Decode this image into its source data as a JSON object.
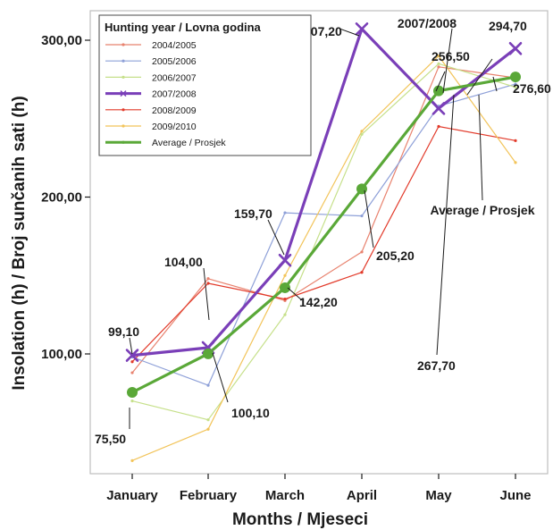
{
  "chart_data": {
    "type": "line",
    "xlabel": "Months / Mjeseci",
    "ylabel": "Insolation (h) / Broj sunčanih sati (h)",
    "categories": [
      "January",
      "February",
      "March",
      "April",
      "May",
      "June"
    ],
    "ylim": [
      20,
      310
    ],
    "yticks": [
      "100,00",
      "200,00",
      "300,00"
    ],
    "ytick_values": [
      100,
      200,
      300
    ],
    "grid": false,
    "legend": {
      "title": "Hunting year / Lovna godina",
      "position": "top-left"
    },
    "series": [
      {
        "name": "2004/2005",
        "color": "#e8826e",
        "width": 1.2,
        "values": [
          88,
          148,
          134,
          165,
          283,
          276
        ]
      },
      {
        "name": "2005/2006",
        "color": "#8ea0d8",
        "width": 1.2,
        "values": [
          98,
          80,
          190,
          188,
          258,
          272
        ]
      },
      {
        "name": "2006/2007",
        "color": "#c6e08a",
        "width": 1.2,
        "values": [
          70,
          58,
          125,
          240,
          285,
          270
        ]
      },
      {
        "name": "2007/2008",
        "color": "#7a3fb8",
        "width": 3.2,
        "marker": "x",
        "values": [
          99.1,
          104.0,
          159.7,
          307.2,
          256.5,
          294.7
        ]
      },
      {
        "name": "2008/2009",
        "color": "#e23a2a",
        "width": 1.2,
        "values": [
          95,
          145,
          135,
          152,
          245,
          236
        ]
      },
      {
        "name": "2009/2010",
        "color": "#f2c45a",
        "width": 1.2,
        "values": [
          32,
          52,
          150,
          242,
          290,
          222
        ]
      },
      {
        "name": "Average / Prosjek",
        "color": "#5aa838",
        "width": 3.2,
        "marker": "dot",
        "values": [
          75.5,
          100.1,
          142.2,
          205.2,
          267.7,
          276.6
        ]
      }
    ],
    "data_labels": [
      "99,10",
      "104,00",
      "159,70",
      "307,20",
      "256,50",
      "294,70",
      "75,50",
      "100,10",
      "142,20",
      "205,20",
      "267,70",
      "276,60"
    ],
    "annotations": [
      "2007/2008",
      "Average / Prosjek"
    ]
  }
}
